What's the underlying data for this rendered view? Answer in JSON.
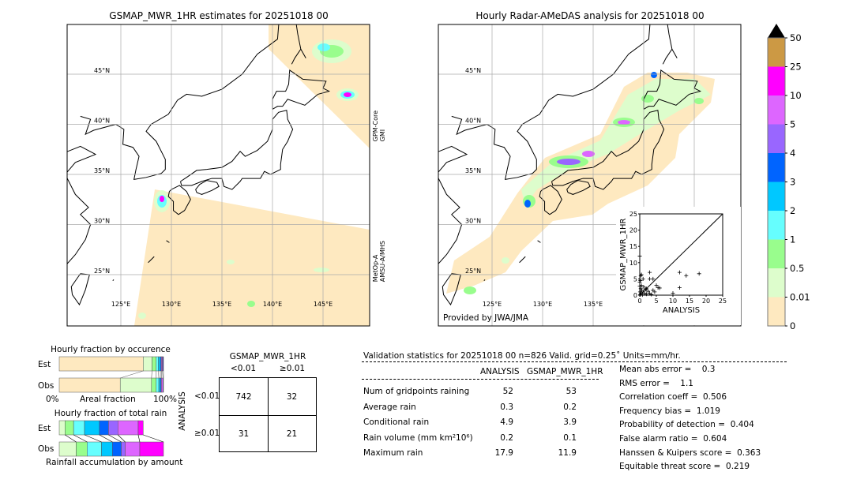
{
  "left_map": {
    "title": "GSMAP_MWR_1HR estimates for 20251018 00",
    "swath_labels": [
      "GPM-Core\nGMI",
      "MetOp-A\nAMSU-A/MHS"
    ],
    "lat_labels": [
      "45°N",
      "40°N",
      "35°N",
      "30°N",
      "25°N"
    ],
    "lon_labels": [
      "125°E",
      "130°E",
      "135°E",
      "140°E",
      "145°E"
    ]
  },
  "right_map": {
    "title": "Hourly Radar-AMeDAS analysis for 20251018 00",
    "credit": "Provided by JWA/JMA",
    "lat_labels": [
      "45°N",
      "40°N",
      "35°N",
      "30°N",
      "25°N"
    ],
    "lon_labels": [
      "125°E",
      "130°E",
      "135°E"
    ]
  },
  "colorbar": {
    "ticks": [
      "0",
      "0.01",
      "0.5",
      "1",
      "2",
      "3",
      "4",
      "5",
      "10",
      "25",
      "50"
    ],
    "colors": [
      "#fee9c0",
      "#ddfdcc",
      "#99fd8d",
      "#66fefe",
      "#00c8ff",
      "#0064ff",
      "#9966ff",
      "#dd66ff",
      "#ff00ff",
      "#cc9944"
    ],
    "extend_color": "#000000"
  },
  "chart_data": [
    {
      "type": "scatter",
      "xlabel": "ANALYSIS",
      "ylabel": "GSMAP_MWR_1HR",
      "xlim": [
        0,
        25
      ],
      "ylim": [
        0,
        25
      ],
      "xticks": [
        "0",
        "5",
        "10",
        "15",
        "20",
        "25"
      ],
      "yticks": [
        "0",
        "5",
        "10",
        "15",
        "20",
        "25"
      ],
      "points": [
        [
          0,
          12
        ],
        [
          0.5,
          6.3
        ],
        [
          0.3,
          6
        ],
        [
          1,
          5
        ],
        [
          3,
          7
        ],
        [
          3,
          5
        ],
        [
          4,
          5
        ],
        [
          5,
          3
        ],
        [
          5.5,
          2.3
        ],
        [
          6,
          2.2
        ],
        [
          12,
          7
        ],
        [
          14,
          6
        ],
        [
          17.9,
          6.6
        ],
        [
          12,
          2.3
        ],
        [
          10,
          0.6
        ],
        [
          4,
          1.5
        ],
        [
          4.5,
          1
        ],
        [
          2,
          2
        ],
        [
          1,
          1
        ],
        [
          0.5,
          3
        ],
        [
          0.3,
          2
        ],
        [
          1.5,
          0.5
        ],
        [
          2,
          0.3
        ],
        [
          3,
          0.5
        ],
        [
          0.2,
          0.2
        ],
        [
          0.8,
          0.1
        ],
        [
          0,
          4
        ],
        [
          0.2,
          4.5
        ],
        [
          0.6,
          1.5
        ],
        [
          1.2,
          2.5
        ],
        [
          2.5,
          1.2
        ],
        [
          0.1,
          1
        ],
        [
          0.4,
          0.6
        ],
        [
          1.8,
          1.8
        ],
        [
          3.5,
          0.2
        ],
        [
          0,
          2.8
        ]
      ]
    },
    {
      "type": "bar",
      "title": "Hourly fraction by occurence",
      "xlabel": "Areal fraction",
      "xtick_left": "0%",
      "xtick_right": "100%",
      "categories": [
        "Est",
        "Obs"
      ],
      "series": [
        {
          "values_percent": [
            80.5,
            8.5,
            4,
            2,
            2,
            1,
            1,
            1
          ]
        },
        {
          "values_percent": [
            58.5,
            30,
            4.5,
            2.5,
            1.5,
            1,
            1.5,
            0.5
          ]
        }
      ]
    },
    {
      "type": "bar",
      "title": "Hourly fraction of total rain",
      "xlabel": "Rainfall accumulation by amount",
      "categories": [
        "Est",
        "Obs"
      ],
      "series": [
        {
          "values_percent": [
            5.5,
            8.25,
            10.5,
            14.25,
            8.75,
            9,
            19.5,
            4.75
          ]
        },
        {
          "values_percent": [
            16.25,
            10.5,
            13.75,
            10.5,
            8.5,
            3.75,
            14,
            22.75
          ]
        }
      ]
    },
    {
      "type": "table",
      "title": "GSMAP_MWR_1HR",
      "col_headers": [
        "<0.01",
        "≥0.01"
      ],
      "row_label": "ANALYSIS",
      "row_headers": [
        "<0.01",
        "≥0.01"
      ],
      "cells": [
        [
          "742",
          "32"
        ],
        [
          "31",
          "21"
        ]
      ]
    }
  ],
  "validation": {
    "header": "Validation statistics for 20251018 00  n=826 Valid. grid=0.25˚ Units=mm/hr.",
    "col_headers": [
      "ANALYSIS",
      "GSMAP_MWR_1HR"
    ],
    "rows": [
      {
        "label": "Num of gridpoints raining",
        "analysis": "52",
        "gsmap": "53"
      },
      {
        "label": "Average rain",
        "analysis": "0.3",
        "gsmap": "0.2"
      },
      {
        "label": "Conditional rain",
        "analysis": "4.9",
        "gsmap": "3.9"
      },
      {
        "label": "Rain volume (mm km²10⁶)",
        "analysis": "0.2",
        "gsmap": "0.1"
      },
      {
        "label": "Maximum rain",
        "analysis": "17.9",
        "gsmap": "11.9"
      }
    ],
    "scores": [
      "Mean abs error =    0.3",
      "RMS error =    1.1",
      "Correlation coeff =  0.506",
      "Frequency bias =  1.019",
      "Probability of detection =  0.404",
      "False alarm ratio =  0.604",
      "Hanssen & Kuipers score =  0.363",
      "Equitable threat score =  0.219"
    ]
  }
}
